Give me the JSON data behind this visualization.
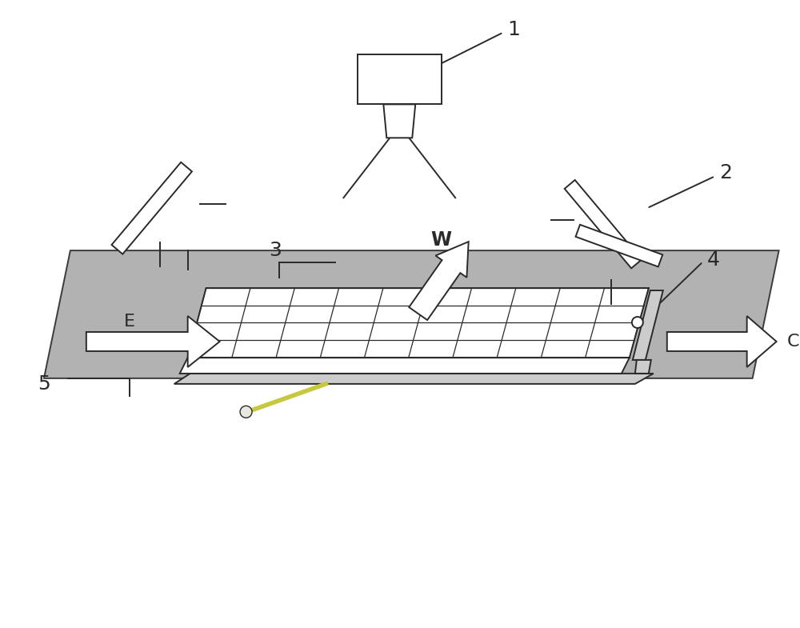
{
  "bg_color": "#ffffff",
  "line_color": "#2a2a2a",
  "gray_fill": "#aaaaaa",
  "light_gray": "#cccccc",
  "font_size_labels": 16,
  "font_size_nums": 18,
  "label_1": "1",
  "label_2": "2",
  "label_3": "3",
  "label_4": "4",
  "label_5": "5",
  "label_E": "E",
  "label_C": "C",
  "label_W": "W"
}
